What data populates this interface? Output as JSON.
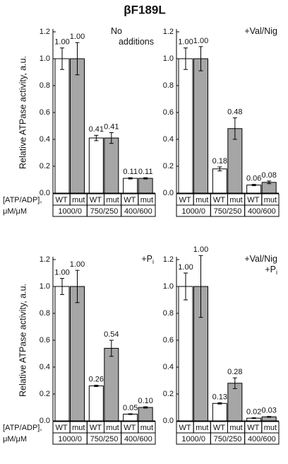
{
  "title": "βF189L",
  "chart_data": [
    {
      "type": "bar",
      "ylabel": "Relative ATPase activity, a.u.",
      "xlabel": [
        "[ATP/ADP],",
        "μM/μM"
      ],
      "annotation": [
        "No",
        "additions"
      ],
      "categories": [
        "1000/0",
        "750/250",
        "400/600"
      ],
      "ylim": [
        0,
        1.2
      ],
      "yticks": [
        {
          "value": 0,
          "label": "0.0"
        },
        0.2,
        0.4,
        0.6,
        0.8,
        {
          "value": 1,
          "label": "1.0"
        },
        1.2
      ],
      "series": [
        {
          "name": "WT",
          "color": "#ffffff",
          "values": [
            1,
            0.41,
            0.11
          ],
          "value_labels": [
            "1.00",
            "0.41",
            "0.11"
          ],
          "errors": [
            0.08,
            0.02,
            0.005
          ]
        },
        {
          "name": "mut",
          "color": "#a6a6a6",
          "values": [
            1,
            0.41,
            0.11
          ],
          "value_labels": [
            "1.00",
            "0.41",
            "0.11"
          ],
          "errors": [
            0.12,
            0.04,
            0.005
          ]
        }
      ]
    },
    {
      "type": "bar",
      "annotation": [
        "+Val/Nig"
      ],
      "categories": [
        "1000/0",
        "750/250",
        "400/600"
      ],
      "ylim": [
        0,
        1.2
      ],
      "yticks": [
        {
          "value": 0,
          "label": "0.0"
        },
        0.2,
        0.4,
        0.6,
        0.8,
        {
          "value": 1,
          "label": "1.0"
        },
        1.2
      ],
      "series": [
        {
          "name": "WT",
          "color": "#ffffff",
          "values": [
            1,
            0.18,
            0.06
          ],
          "value_labels": [
            "1.00",
            "0.18",
            "0.06"
          ],
          "errors": [
            0.08,
            0.015,
            0.005
          ]
        },
        {
          "name": "mut",
          "color": "#a6a6a6",
          "values": [
            1,
            0.48,
            0.08
          ],
          "value_labels": [
            "1.00",
            "0.48",
            "0.08"
          ],
          "errors": [
            0.09,
            0.08,
            0.01
          ]
        }
      ]
    },
    {
      "type": "bar",
      "ylabel": "Relative ATPase activity, a.u.",
      "xlabel": [
        "[ATP/ADP],",
        "μM/μM"
      ],
      "annotation": [
        "+P"
      ],
      "annotation_sub": "i",
      "categories": [
        "1000/0",
        "750/250",
        "400/600"
      ],
      "ylim": [
        0,
        1.2
      ],
      "yticks": [
        {
          "value": 0,
          "label": "0.0"
        },
        0.2,
        0.4,
        0.6,
        0.8,
        {
          "value": 1,
          "label": "1.0"
        },
        1.2
      ],
      "series": [
        {
          "name": "WT",
          "color": "#ffffff",
          "values": [
            1,
            0.26,
            0.05
          ],
          "value_labels": [
            "1.00",
            "0.26",
            "0.05"
          ],
          "errors": [
            0.06,
            0.005,
            0.003
          ]
        },
        {
          "name": "mut",
          "color": "#a6a6a6",
          "values": [
            1,
            0.54,
            0.1
          ],
          "value_labels": [
            "1.00",
            "0.54",
            "0.10"
          ],
          "errors": [
            0.12,
            0.06,
            0.005
          ]
        }
      ]
    },
    {
      "type": "bar",
      "annotation": [
        "+Val/Nig",
        "+P"
      ],
      "annotation_sub": "i",
      "categories": [
        "1000/0",
        "750/250",
        "400/600"
      ],
      "ylim": [
        0,
        1.2
      ],
      "yticks": [
        {
          "value": 0,
          "label": "0.0"
        },
        0.2,
        0.4,
        0.6,
        0.8,
        {
          "value": 1,
          "label": "1.0"
        },
        1.2
      ],
      "series": [
        {
          "name": "WT",
          "color": "#ffffff",
          "values": [
            1,
            0.13,
            0.02
          ],
          "value_labels": [
            "1.00",
            "0.13",
            "0.02"
          ],
          "errors": [
            0.1,
            0.005,
            0.003
          ]
        },
        {
          "name": "mut",
          "color": "#a6a6a6",
          "values": [
            1,
            0.28,
            0.03
          ],
          "value_labels": [
            "1.00",
            "0.28",
            "0.03"
          ],
          "errors": [
            0.23,
            0.04,
            0.003
          ]
        }
      ]
    }
  ]
}
